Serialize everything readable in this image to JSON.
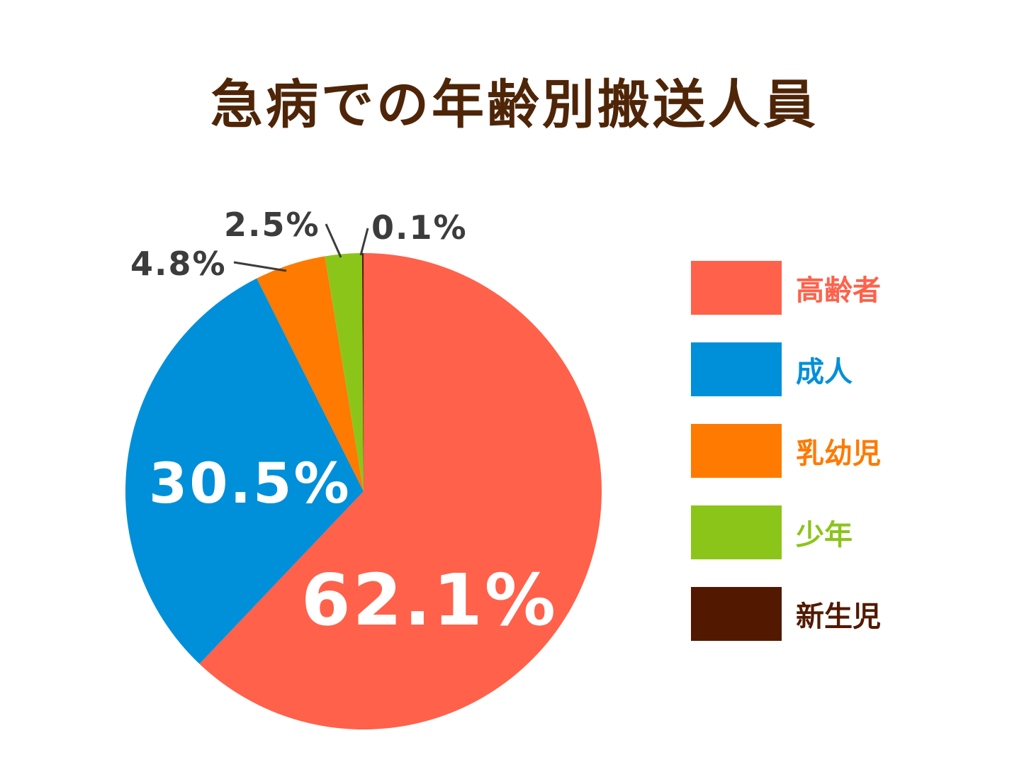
{
  "title": "急病での年齢別搬送人員",
  "chart_data": {
    "type": "pie",
    "title": "急病での年齢別搬送人員",
    "categories": [
      "高齢者",
      "成人",
      "乳幼児",
      "少年",
      "新生児"
    ],
    "values": [
      62.1,
      30.5,
      4.8,
      2.5,
      0.1
    ],
    "unit": "%",
    "colors": [
      "#ff614a",
      "#008fd9",
      "#ff7a00",
      "#8cc51a",
      "#521900"
    ],
    "start_angle": "12 o'clock",
    "direction": "clockwise",
    "legend_position": "right"
  },
  "labels": {
    "elderly": "62.1%",
    "adult": "30.5%",
    "infant": "4.8%",
    "youth": "2.5%",
    "newborn": "0.1%"
  },
  "legend": [
    {
      "label": "高齢者",
      "color": "#ff614a"
    },
    {
      "label": "成人",
      "color": "#008fd9"
    },
    {
      "label": "乳幼児",
      "color": "#ff7a00"
    },
    {
      "label": "少年",
      "color": "#8cc51a"
    },
    {
      "label": "新生児",
      "color": "#521900"
    }
  ]
}
